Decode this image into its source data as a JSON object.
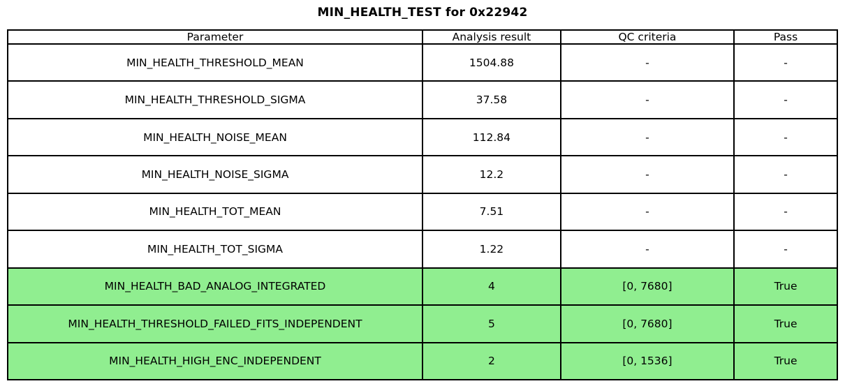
{
  "chart_data": {
    "type": "table",
    "title": "MIN_HEALTH_TEST for 0x22942",
    "columns": [
      "Parameter",
      "Analysis result",
      "QC criteria",
      "Pass"
    ],
    "rows": [
      {
        "cells": [
          "MIN_HEALTH_THRESHOLD_MEAN",
          "1504.88",
          "-",
          "-"
        ],
        "highlighted": false
      },
      {
        "cells": [
          "MIN_HEALTH_THRESHOLD_SIGMA",
          "37.58",
          "-",
          "-"
        ],
        "highlighted": false
      },
      {
        "cells": [
          "MIN_HEALTH_NOISE_MEAN",
          "112.84",
          "-",
          "-"
        ],
        "highlighted": false
      },
      {
        "cells": [
          "MIN_HEALTH_NOISE_SIGMA",
          "12.2",
          "-",
          "-"
        ],
        "highlighted": false
      },
      {
        "cells": [
          "MIN_HEALTH_TOT_MEAN",
          "7.51",
          "-",
          "-"
        ],
        "highlighted": false
      },
      {
        "cells": [
          "MIN_HEALTH_TOT_SIGMA",
          "1.22",
          "-",
          "-"
        ],
        "highlighted": false
      },
      {
        "cells": [
          "MIN_HEALTH_BAD_ANALOG_INTEGRATED",
          "4",
          "[0, 7680]",
          "True"
        ],
        "highlighted": true
      },
      {
        "cells": [
          "MIN_HEALTH_THRESHOLD_FAILED_FITS_INDEPENDENT",
          "5",
          "[0, 7680]",
          "True"
        ],
        "highlighted": true
      },
      {
        "cells": [
          "MIN_HEALTH_HIGH_ENC_INDEPENDENT",
          "2",
          "[0, 1536]",
          "True"
        ],
        "highlighted": true
      }
    ],
    "colors": {
      "highlight_row_background": "#90ee90",
      "normal_row_background": "#ffffff",
      "border": "#000000",
      "text": "#000000",
      "title_text": "#000000"
    },
    "layout": {
      "legend": "none",
      "grid": "full-cell-borders",
      "column_widths_pct": [
        50.0,
        16.65,
        20.9,
        12.45
      ]
    }
  }
}
